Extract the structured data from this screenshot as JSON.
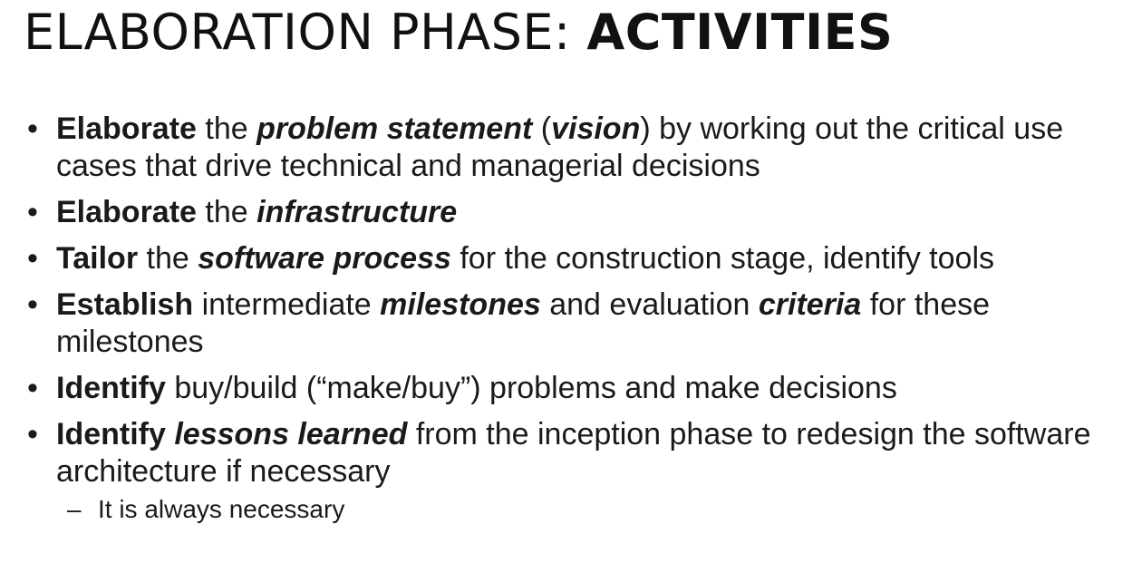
{
  "title": {
    "light": "ELABORATION PHASE: ",
    "bold": "ACTIVITIES"
  },
  "bullet_symbol": "•",
  "sub_bullet_symbol": "–",
  "bullets": [
    {
      "s0": "Elaborate",
      "s1": " the ",
      "s2": "problem statement",
      "s3": " (",
      "s4": "vision",
      "s5": ") by working out the critical use cases that drive technical and managerial decisions"
    },
    {
      "s0": "Elaborate",
      "s1": " the ",
      "s2": "infrastructure"
    },
    {
      "s0": "Tailor",
      "s1": " the ",
      "s2": "software process",
      "s3": " for the construction stage, identify tools"
    },
    {
      "s0": "Establish",
      "s1": " intermediate ",
      "s2": "milestones",
      "s3": " and evaluation ",
      "s4": "criteria",
      "s5": " for these milestones"
    },
    {
      "s0": "Identify",
      "s1": " buy/build (“make/buy”) problems and make decisions"
    },
    {
      "s0": "Identify",
      "s1": " ",
      "s2": "lessons learned",
      "s3": " from the inception phase to redesign the software architecture if necessary",
      "sub": "It is always necessary"
    }
  ]
}
